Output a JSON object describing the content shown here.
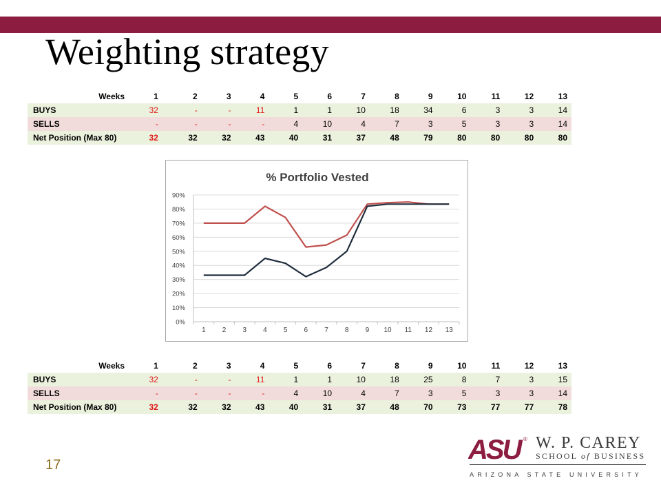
{
  "slide": {
    "title": "Weighting strategy",
    "page_number": "17",
    "accent_color": "#8c1d40"
  },
  "table1": {
    "header_label": "Weeks",
    "weeks": [
      "1",
      "2",
      "3",
      "4",
      "5",
      "6",
      "7",
      "8",
      "9",
      "10",
      "11",
      "12",
      "13"
    ],
    "rows": [
      {
        "label": "BUYS",
        "cells": [
          "32",
          "-",
          "-",
          "11",
          "1",
          "1",
          "10",
          "18",
          "34",
          "6",
          "3",
          "3",
          "14"
        ]
      },
      {
        "label": "SELLS",
        "cells": [
          "-",
          "-",
          "-",
          "-",
          "4",
          "10",
          "4",
          "7",
          "3",
          "5",
          "3",
          "3",
          "14"
        ]
      },
      {
        "label": "Net Position (Max 80)",
        "cells": [
          "32",
          "32",
          "32",
          "43",
          "40",
          "31",
          "37",
          "48",
          "79",
          "80",
          "80",
          "80",
          "80"
        ]
      }
    ]
  },
  "table2": {
    "header_label": "Weeks",
    "weeks": [
      "1",
      "2",
      "3",
      "4",
      "5",
      "6",
      "7",
      "8",
      "9",
      "10",
      "11",
      "12",
      "13"
    ],
    "rows": [
      {
        "label": "BUYS",
        "cells": [
          "32",
          "-",
          "-",
          "11",
          "1",
          "1",
          "10",
          "18",
          "25",
          "8",
          "7",
          "3",
          "15"
        ]
      },
      {
        "label": "SELLS",
        "cells": [
          "-",
          "-",
          "-",
          "-",
          "4",
          "10",
          "4",
          "7",
          "3",
          "5",
          "3",
          "3",
          "14"
        ]
      },
      {
        "label": "Net Position (Max 80)",
        "cells": [
          "32",
          "32",
          "32",
          "43",
          "40",
          "31",
          "37",
          "48",
          "70",
          "73",
          "77",
          "77",
          "78"
        ]
      }
    ]
  },
  "chart_data": {
    "type": "line",
    "title": "% Portfolio Vested",
    "xlabel": "",
    "ylabel": "",
    "categories": [
      "1",
      "2",
      "3",
      "4",
      "5",
      "6",
      "7",
      "8",
      "9",
      "10",
      "11",
      "12",
      "13"
    ],
    "y_ticks": [
      "0%",
      "10%",
      "20%",
      "30%",
      "40%",
      "50%",
      "60%",
      "70%",
      "80%",
      "90%"
    ],
    "ylim": [
      0,
      90
    ],
    "grid": true,
    "legend": "none",
    "series": [
      {
        "color": "#c0504d",
        "values": [
          70,
          70,
          70,
          82,
          74,
          53,
          54.5,
          61.5,
          83.5,
          84.5,
          85,
          83.5,
          83.5
        ]
      },
      {
        "color": "#1f2d3d",
        "values": [
          33,
          33,
          33,
          45,
          41.5,
          32,
          38.5,
          50,
          82,
          83.5,
          83.5,
          83.5,
          83.5
        ]
      }
    ]
  },
  "logo": {
    "mark": "ASU",
    "name": "W. P. CAREY",
    "school_pre": "SCHOOL ",
    "school_of": "of",
    "school_post": " BUSINESS",
    "university": "ARIZONA STATE UNIVERSITY"
  }
}
